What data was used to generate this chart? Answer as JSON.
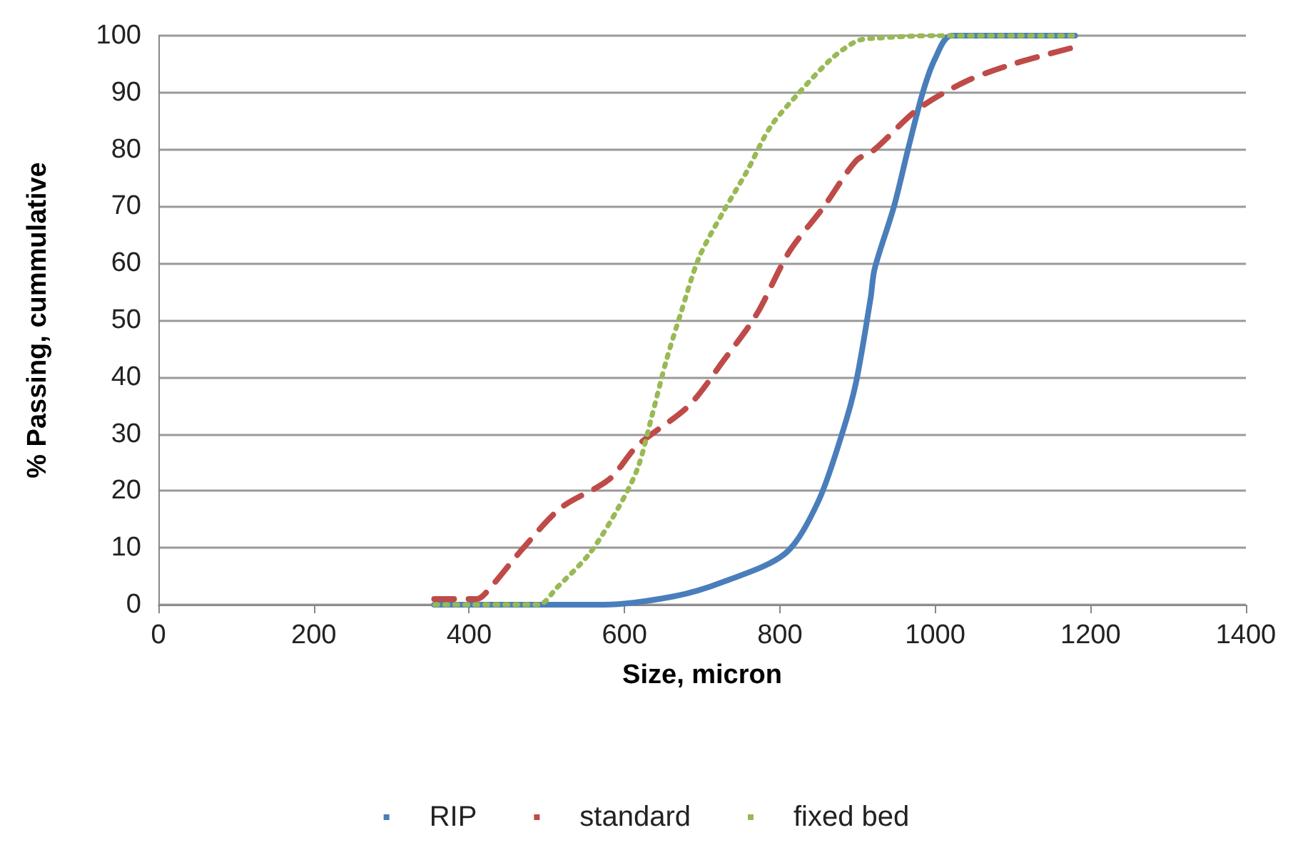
{
  "chart_data": {
    "type": "line",
    "xlabel": "Size, micron",
    "ylabel": "% Passing, cummulative",
    "xlim": [
      0,
      1400
    ],
    "xticks": [
      0,
      200,
      400,
      600,
      800,
      1000,
      1200,
      1400
    ],
    "ylim": [
      0,
      100
    ],
    "yticks": [
      0,
      10,
      20,
      30,
      40,
      50,
      60,
      70,
      80,
      90,
      100
    ],
    "grid": "y",
    "legend": "bottom",
    "marker": "none",
    "series": [
      {
        "name": "RIP",
        "color": "#4a7ebb",
        "line_style": "solid",
        "x": [
          355,
          573,
          665,
          727,
          807,
          849,
          880,
          898,
          917,
          922,
          947,
          965,
          984,
          1000,
          1021,
          1180
        ],
        "values": [
          0,
          0,
          1.5,
          4,
          9,
          18,
          30,
          39,
          54,
          59,
          70,
          80,
          90,
          96,
          100,
          100
        ]
      },
      {
        "name": "standard",
        "color": "#be4b48",
        "line_style": "dashed",
        "x": [
          355,
          410,
          421,
          470,
          518,
          580,
          617,
          683,
          728,
          770,
          812,
          857,
          898,
          922,
          977,
          1040,
          1100,
          1180
        ],
        "values": [
          1,
          1,
          2,
          10,
          17,
          22,
          28,
          35,
          43,
          51,
          62,
          70,
          78,
          80,
          87,
          92,
          95,
          98
        ]
      },
      {
        "name": "fixed bed",
        "color": "#98b954",
        "line_style": "dotted",
        "x": [
          356,
          489,
          513,
          555,
          592,
          617,
          635,
          654,
          672,
          696,
          727,
          757,
          788,
          825,
          867,
          898,
          917,
          1000,
          1180
        ],
        "values": [
          0,
          0,
          3,
          9,
          17,
          24,
          33,
          43,
          51,
          61,
          69,
          76,
          84,
          90,
          96,
          99,
          99.5,
          100,
          100
        ]
      }
    ]
  }
}
